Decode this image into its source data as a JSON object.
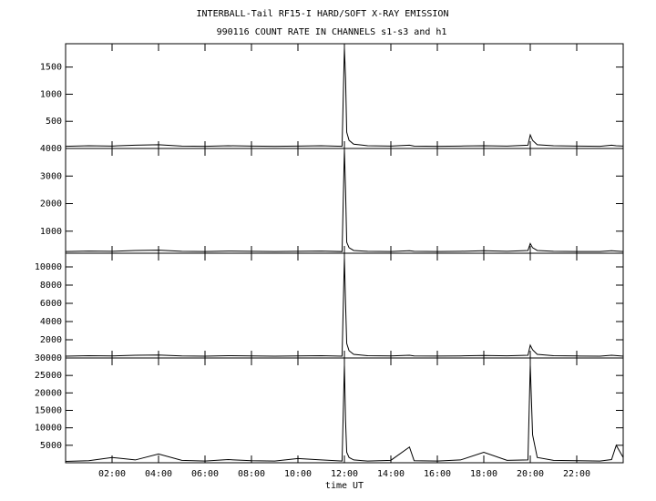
{
  "chart_data": [
    {
      "type": "line",
      "title": "INTERBALL-Tail RF15-I HARD/SOFT X-RAY EMISSION",
      "subtitle": "990116  COUNT RATE IN CHANNELS s1-s3 and h1",
      "color": "#000000",
      "x": [
        0,
        1,
        2,
        3,
        4,
        5,
        6,
        7,
        8,
        9,
        10,
        11,
        11.9,
        12.0,
        12.05,
        12.1,
        12.2,
        12.4,
        12.8,
        13,
        14,
        14.8,
        15,
        16,
        17,
        18,
        19,
        19.9,
        20.0,
        20.1,
        20.3,
        21,
        22,
        23,
        23.5,
        23.7,
        24
      ],
      "values": [
        40,
        50,
        45,
        60,
        70,
        45,
        40,
        50,
        45,
        40,
        45,
        50,
        40,
        1850,
        1300,
        300,
        150,
        80,
        60,
        50,
        45,
        60,
        45,
        40,
        45,
        50,
        45,
        60,
        250,
        150,
        70,
        50,
        45,
        40,
        60,
        50,
        45
      ],
      "xlim": [
        0,
        24
      ],
      "ylim": [
        0,
        1930
      ],
      "yticks": [
        500,
        1000,
        1500
      ]
    },
    {
      "type": "line",
      "color": "#000000",
      "x": [
        0,
        1,
        2,
        3,
        4,
        5,
        6,
        7,
        8,
        9,
        10,
        11,
        11.9,
        12.0,
        12.05,
        12.1,
        12.2,
        12.4,
        12.8,
        13,
        14,
        14.8,
        15,
        16,
        17,
        18,
        19,
        19.9,
        20.0,
        20.1,
        20.3,
        21,
        22,
        23,
        23.5,
        23.7,
        24
      ],
      "values": [
        260,
        280,
        270,
        300,
        310,
        270,
        260,
        280,
        270,
        260,
        270,
        280,
        260,
        3950,
        2500,
        600,
        400,
        300,
        280,
        270,
        260,
        290,
        270,
        260,
        270,
        290,
        270,
        300,
        550,
        400,
        300,
        270,
        260,
        260,
        290,
        280,
        260
      ],
      "xlim": [
        0,
        24
      ],
      "ylim": [
        200,
        4000
      ],
      "yticks": [
        1000,
        2000,
        3000,
        4000
      ]
    },
    {
      "type": "line",
      "color": "#000000",
      "x": [
        0,
        1,
        2,
        3,
        4,
        5,
        6,
        7,
        8,
        9,
        10,
        11,
        11.9,
        12.0,
        12.05,
        12.1,
        12.2,
        12.4,
        12.8,
        13,
        14,
        14.8,
        15,
        16,
        17,
        18,
        19,
        19.9,
        20.0,
        20.1,
        20.3,
        21,
        22,
        23,
        23.5,
        23.7,
        24
      ],
      "values": [
        200,
        250,
        220,
        300,
        320,
        230,
        200,
        250,
        220,
        200,
        230,
        250,
        200,
        11000,
        6000,
        1600,
        800,
        400,
        300,
        250,
        220,
        300,
        230,
        210,
        230,
        280,
        240,
        300,
        1400,
        900,
        400,
        250,
        220,
        200,
        300,
        260,
        200
      ],
      "xlim": [
        0,
        24
      ],
      "ylim": [
        0,
        11500
      ],
      "yticks": [
        2000,
        4000,
        6000,
        8000,
        10000
      ]
    },
    {
      "type": "line",
      "color": "#000000",
      "xlabel": "time UT",
      "x": [
        0,
        1,
        2,
        3,
        4,
        5,
        6,
        7,
        8,
        9,
        10,
        11,
        11.9,
        12.0,
        12.05,
        12.1,
        12.2,
        12.4,
        12.8,
        13,
        14,
        14.8,
        15,
        16,
        17,
        18,
        19,
        19.9,
        20.0,
        20.1,
        20.3,
        21,
        22,
        23,
        23.5,
        23.7,
        24
      ],
      "values": [
        400,
        600,
        1500,
        800,
        2500,
        700,
        500,
        900,
        600,
        500,
        1200,
        800,
        500,
        28000,
        12000,
        3000,
        1500,
        800,
        600,
        500,
        700,
        4500,
        600,
        500,
        800,
        3000,
        700,
        800,
        28000,
        8000,
        1500,
        700,
        600,
        500,
        900,
        5000,
        1500
      ],
      "xlim": [
        0,
        24
      ],
      "ylim": [
        0,
        30000
      ],
      "yticks": [
        5000,
        10000,
        15000,
        20000,
        25000,
        30000
      ],
      "xticks": [
        {
          "value": 2,
          "label": "02:00"
        },
        {
          "value": 4,
          "label": "04:00"
        },
        {
          "value": 6,
          "label": "06:00"
        },
        {
          "value": 8,
          "label": "08:00"
        },
        {
          "value": 10,
          "label": "10:00"
        },
        {
          "value": 12,
          "label": "12:00"
        },
        {
          "value": 14,
          "label": "14:00"
        },
        {
          "value": 16,
          "label": "16:00"
        },
        {
          "value": 18,
          "label": "18:00"
        },
        {
          "value": 20,
          "label": "20:00"
        },
        {
          "value": 22,
          "label": "22:00"
        }
      ]
    }
  ]
}
